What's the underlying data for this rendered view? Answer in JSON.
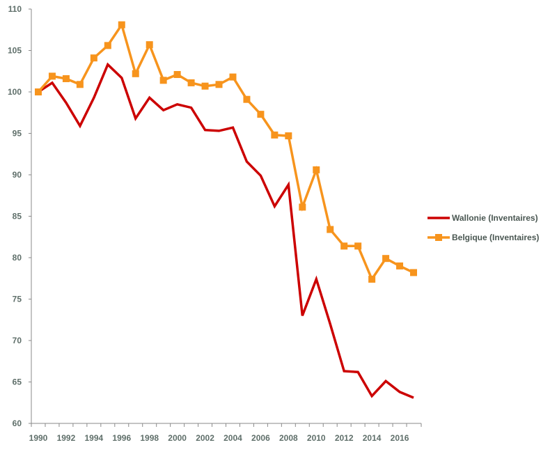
{
  "chart_data": {
    "type": "line",
    "title": "",
    "xlabel": "",
    "ylabel": "",
    "x": [
      1990,
      1991,
      1992,
      1993,
      1994,
      1995,
      1996,
      1997,
      1998,
      1999,
      2000,
      2001,
      2002,
      2003,
      2004,
      2005,
      2006,
      2007,
      2008,
      2009,
      2010,
      2011,
      2012,
      2013,
      2014,
      2015,
      2016,
      2017
    ],
    "xlim": [
      1990,
      2017
    ],
    "ylim": [
      60,
      110
    ],
    "yticks": [
      60,
      65,
      70,
      75,
      80,
      85,
      90,
      95,
      100,
      105,
      110
    ],
    "xticks": [
      1990,
      1992,
      1994,
      1996,
      1998,
      2000,
      2002,
      2004,
      2006,
      2008,
      2010,
      2012,
      2014,
      2016
    ],
    "grid": false,
    "legend_position": "right",
    "series": [
      {
        "name": "Wallonie (Inventaires)",
        "color": "#cc0000",
        "marker": "none",
        "values": [
          100,
          101.1,
          98.7,
          95.9,
          99.3,
          103.3,
          101.7,
          96.8,
          99.3,
          97.8,
          98.5,
          98.1,
          95.4,
          95.3,
          95.7,
          91.6,
          89.9,
          86.2,
          88.8,
          73.0,
          77.4,
          72.0,
          66.3,
          66.2,
          63.3,
          65.1,
          63.8,
          63.1
        ]
      },
      {
        "name": "Belgique (Inventaires)",
        "color": "#f7941d",
        "marker": "square",
        "values": [
          100,
          101.9,
          101.6,
          100.9,
          104.1,
          105.6,
          108.1,
          102.2,
          105.7,
          101.4,
          102.1,
          101.1,
          100.7,
          100.9,
          101.8,
          99.1,
          97.3,
          94.8,
          94.7,
          86.1,
          90.6,
          83.4,
          81.4,
          81.4,
          77.4,
          79.9,
          79.0,
          78.2
        ]
      }
    ]
  }
}
